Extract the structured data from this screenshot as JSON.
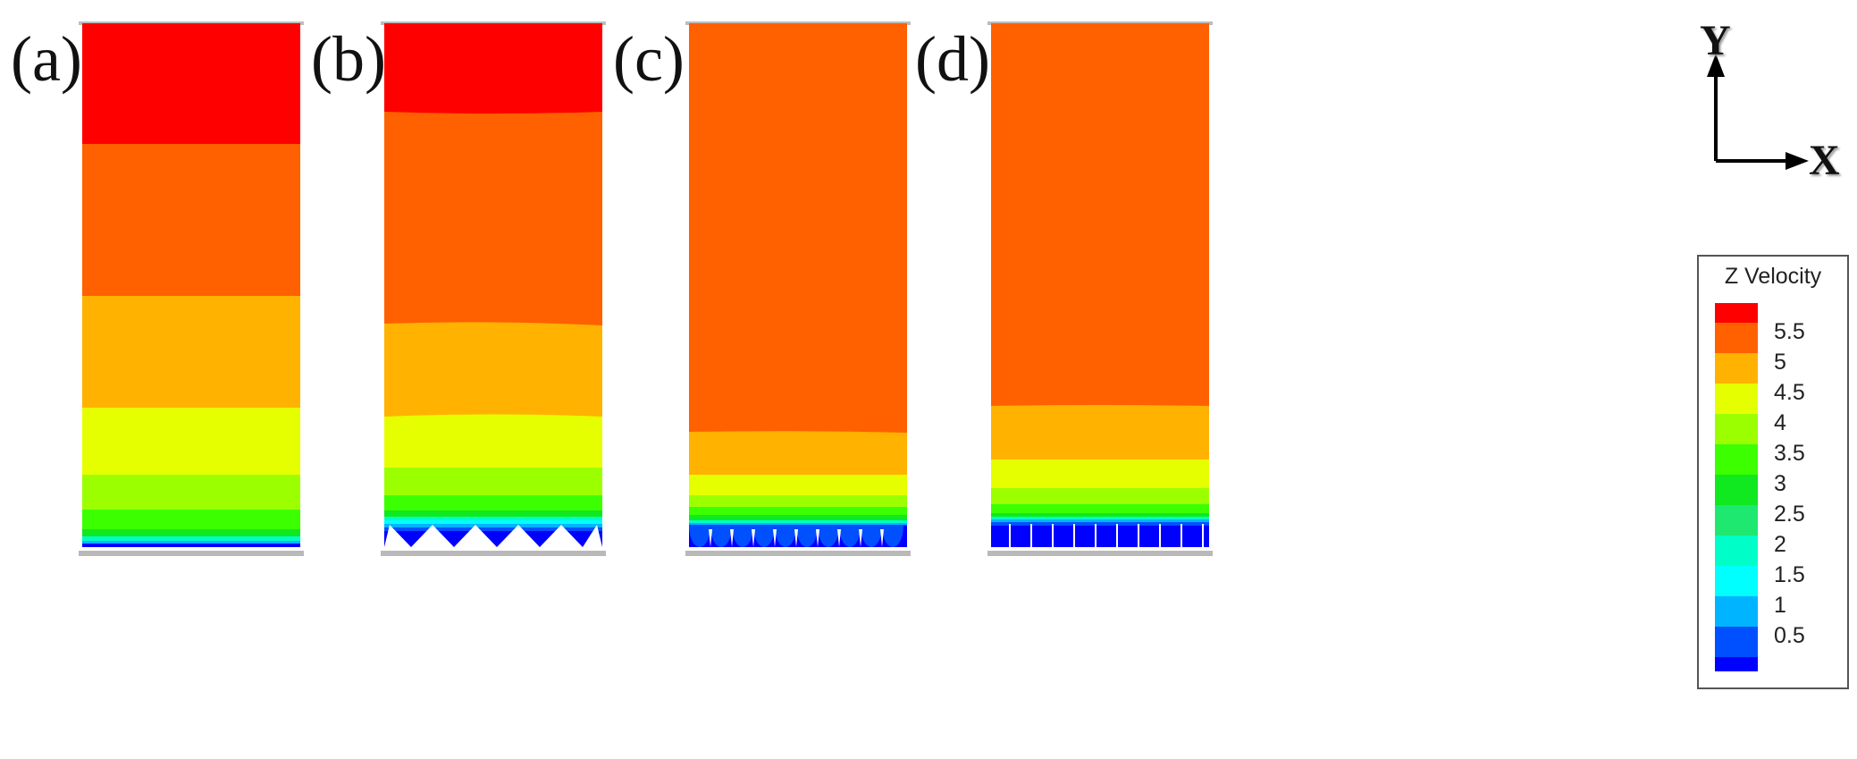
{
  "panels": [
    {
      "label": "(a)"
    },
    {
      "label": "(b)"
    },
    {
      "label": "(c)"
    },
    {
      "label": "(d)"
    }
  ],
  "axes": {
    "y_label": "Y",
    "x_label": "X"
  },
  "legend": {
    "title": "Z Velocity",
    "levels": [
      {
        "label": "5.5",
        "color": "#ff6000"
      },
      {
        "label": "5",
        "color": "#ffb200"
      },
      {
        "label": "4.5",
        "color": "#e6ff00"
      },
      {
        "label": "4",
        "color": "#9cff00"
      },
      {
        "label": "3.5",
        "color": "#3cff00"
      },
      {
        "label": "3",
        "color": "#10e820"
      },
      {
        "label": "2.5",
        "color": "#1ee870"
      },
      {
        "label": "2",
        "color": "#00ffc8"
      },
      {
        "label": "1.5",
        "color": "#00ffff"
      },
      {
        "label": "1",
        "color": "#00b4ff"
      },
      {
        "label": "0.5",
        "color": "#0050ff"
      }
    ],
    "top_color": "#ff0000",
    "bottom_color": "#0000ff"
  },
  "colors": {
    "red": "#ff0000",
    "orange": "#ff6000",
    "amber": "#ffb200",
    "yellow": "#e6ff00",
    "lime": "#9cff00",
    "green": "#3cff00",
    "cyan": "#00ffff",
    "blue": "#0050ff",
    "deep_blue": "#0000ff"
  }
}
